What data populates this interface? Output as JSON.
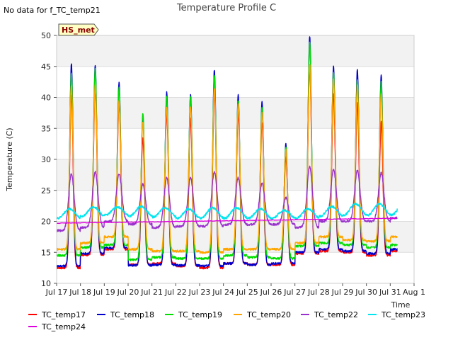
{
  "chart_data": {
    "type": "line",
    "title": "Temperature Profile C",
    "note": "No data for f_TC_temp21",
    "badge": "HS_met",
    "xlabel": "Time",
    "ylabel": "Temperature (C)",
    "xlim": [
      "2024-07-17",
      "2024-08-01"
    ],
    "ylim": [
      10,
      50
    ],
    "yticks": [
      10,
      15,
      20,
      25,
      30,
      35,
      40,
      45,
      50
    ],
    "xticks": [
      "Jul 17",
      "Jul 18",
      "Jul 19",
      "Jul 20",
      "Jul 21",
      "Jul 22",
      "Jul 23",
      "Jul 24",
      "Jul 25",
      "Jul 26",
      "Jul 27",
      "Jul 28",
      "Jul 29",
      "Jul 30",
      "Jul 31",
      "Aug 1"
    ],
    "xdates": [
      "2024-07-17",
      "2024-07-18",
      "2024-07-19",
      "2024-07-20",
      "2024-07-21",
      "2024-07-22",
      "2024-07-23",
      "2024-07-24",
      "2024-07-25",
      "2024-07-26",
      "2024-07-27",
      "2024-07-28",
      "2024-07-29",
      "2024-07-30",
      "2024-07-31",
      "2024-08-01"
    ],
    "grid": true,
    "background": "#f2f2f2",
    "legend_position": "bottom",
    "days": [
      "Jul 17",
      "Jul 18",
      "Jul 19",
      "Jul 20",
      "Jul 21",
      "Jul 22",
      "Jul 23",
      "Jul 24",
      "Jul 25",
      "Jul 26",
      "Jul 27",
      "Jul 28",
      "Jul 29",
      "Jul 30",
      "Jul 31"
    ],
    "series": [
      {
        "name": "TC_temp17",
        "color": "#ff0000",
        "min": [
          12.5,
          14.6,
          15.5,
          13.0,
          13.2,
          12.8,
          12.5,
          13.2,
          13.0,
          13.0,
          14.8,
          15.2,
          15.0,
          14.5,
          15.2
        ],
        "max": [
          40.5,
          41.5,
          39.0,
          33.5,
          37.5,
          36.5,
          41.0,
          37.5,
          36.0,
          30.5,
          45.0,
          40.5,
          39.0,
          36.0,
          39.0
        ]
      },
      {
        "name": "TC_temp18",
        "color": "#0000cc",
        "min": [
          12.8,
          14.8,
          15.7,
          12.9,
          13.0,
          12.9,
          12.8,
          13.2,
          13.0,
          13.2,
          15.0,
          15.5,
          15.2,
          14.8,
          15.5
        ],
        "max": [
          45.5,
          45.2,
          42.5,
          37.0,
          40.8,
          40.5,
          44.5,
          40.3,
          39.3,
          32.5,
          49.8,
          45.0,
          44.5,
          43.5,
          43.5
        ]
      },
      {
        "name": "TC_temp19",
        "color": "#00dd00",
        "min": [
          14.5,
          15.8,
          16.2,
          13.8,
          14.2,
          14.0,
          14.0,
          14.5,
          14.2,
          14.0,
          16.0,
          16.5,
          16.2,
          15.8,
          16.2
        ],
        "max": [
          44.0,
          44.5,
          41.5,
          37.5,
          40.0,
          40.0,
          43.5,
          39.5,
          38.5,
          32.0,
          49.0,
          44.0,
          43.0,
          42.5,
          42.0
        ]
      },
      {
        "name": "TC_temp20",
        "color": "#ffa500",
        "min": [
          15.5,
          16.5,
          17.5,
          15.5,
          15.2,
          15.2,
          15.0,
          15.5,
          15.5,
          15.5,
          16.5,
          17.5,
          17.0,
          16.8,
          17.5
        ],
        "max": [
          42.0,
          42.0,
          39.5,
          36.0,
          38.5,
          38.5,
          41.5,
          39.0,
          37.5,
          31.5,
          45.5,
          43.0,
          42.0,
          40.5,
          40.0
        ]
      },
      {
        "name": "TC_temp22",
        "color": "#9932cc",
        "min": [
          18.5,
          19.0,
          20.0,
          19.5,
          19.0,
          19.2,
          19.2,
          19.5,
          19.5,
          19.5,
          19.0,
          20.0,
          20.0,
          20.0,
          20.5
        ],
        "max": [
          27.7,
          28.0,
          27.7,
          26.0,
          27.0,
          27.0,
          28.0,
          27.0,
          26.2,
          23.8,
          28.8,
          28.3,
          28.2,
          27.8,
          27.7
        ]
      },
      {
        "name": "TC_temp23",
        "color": "#00e5ee",
        "min": [
          20.5,
          20.8,
          21.0,
          20.8,
          20.7,
          20.5,
          20.5,
          20.5,
          20.5,
          20.5,
          20.5,
          20.8,
          21.0,
          21.0,
          21.0
        ],
        "max": [
          22.0,
          22.3,
          22.3,
          22.4,
          22.2,
          22.0,
          22.2,
          22.2,
          22.0,
          21.8,
          22.0,
          22.4,
          22.8,
          22.8,
          22.8
        ]
      },
      {
        "name": "TC_temp24",
        "color": "#dd00dd",
        "start": 19.7,
        "end": 20.5
      }
    ]
  }
}
